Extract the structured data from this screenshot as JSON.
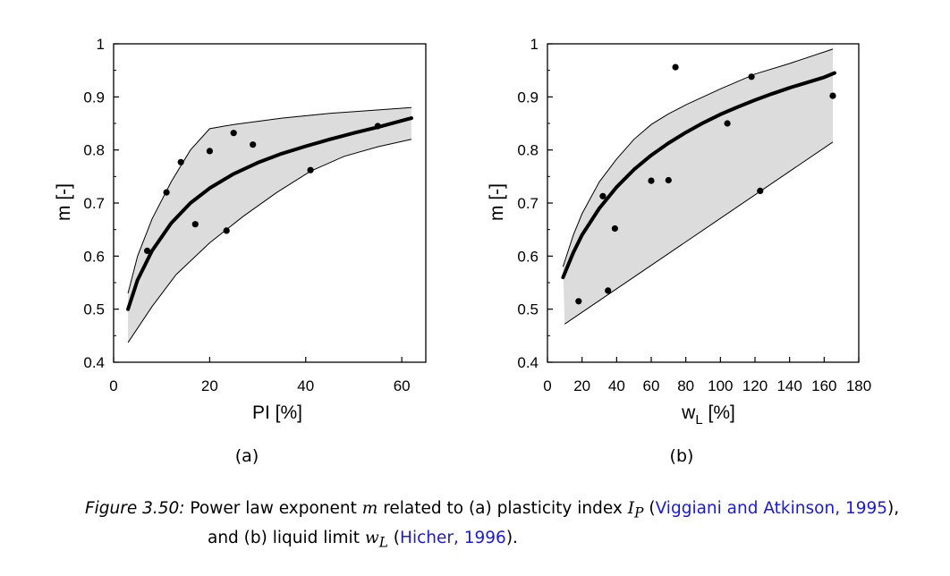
{
  "chart_data": [
    {
      "type": "scatter",
      "panel_label": "(a)",
      "xlabel": "PI [%]",
      "ylabel": "m [-]",
      "xlim": [
        0,
        65
      ],
      "ylim": [
        0.4,
        1.0
      ],
      "x_ticks": [
        0,
        20,
        40,
        60
      ],
      "y_ticks": [
        0.4,
        0.5,
        0.6,
        0.7,
        0.8,
        0.9,
        1.0
      ],
      "y_tick_labels": [
        "0.4",
        "0.5",
        "0.6",
        "0.7",
        "0.8",
        "0.9",
        "1"
      ],
      "grid": false,
      "points": [
        {
          "x": 7,
          "y": 0.61
        },
        {
          "x": 11,
          "y": 0.72
        },
        {
          "x": 14,
          "y": 0.777
        },
        {
          "x": 17,
          "y": 0.66
        },
        {
          "x": 20,
          "y": 0.798
        },
        {
          "x": 23.5,
          "y": 0.648
        },
        {
          "x": 25,
          "y": 0.832
        },
        {
          "x": 29,
          "y": 0.81
        },
        {
          "x": 41,
          "y": 0.762
        },
        {
          "x": 55,
          "y": 0.845
        }
      ],
      "fit_curve": [
        {
          "x": 3,
          "y": 0.5
        },
        {
          "x": 5,
          "y": 0.555
        },
        {
          "x": 8,
          "y": 0.61
        },
        {
          "x": 12,
          "y": 0.662
        },
        {
          "x": 16,
          "y": 0.7
        },
        {
          "x": 20,
          "y": 0.728
        },
        {
          "x": 25,
          "y": 0.755
        },
        {
          "x": 30,
          "y": 0.776
        },
        {
          "x": 35,
          "y": 0.793
        },
        {
          "x": 40,
          "y": 0.807
        },
        {
          "x": 45,
          "y": 0.82
        },
        {
          "x": 50,
          "y": 0.832
        },
        {
          "x": 55,
          "y": 0.843
        },
        {
          "x": 62,
          "y": 0.86
        }
      ],
      "band_upper": [
        {
          "x": 3,
          "y": 0.53
        },
        {
          "x": 5,
          "y": 0.6
        },
        {
          "x": 8,
          "y": 0.67
        },
        {
          "x": 12,
          "y": 0.74
        },
        {
          "x": 16,
          "y": 0.8
        },
        {
          "x": 20,
          "y": 0.84
        },
        {
          "x": 25,
          "y": 0.848
        },
        {
          "x": 35,
          "y": 0.86
        },
        {
          "x": 45,
          "y": 0.869
        },
        {
          "x": 62,
          "y": 0.88
        }
      ],
      "band_lower": [
        {
          "x": 3,
          "y": 0.437
        },
        {
          "x": 8,
          "y": 0.505
        },
        {
          "x": 13,
          "y": 0.565
        },
        {
          "x": 20,
          "y": 0.625
        },
        {
          "x": 27,
          "y": 0.675
        },
        {
          "x": 34,
          "y": 0.72
        },
        {
          "x": 41,
          "y": 0.76
        },
        {
          "x": 48,
          "y": 0.788
        },
        {
          "x": 55,
          "y": 0.806
        },
        {
          "x": 62,
          "y": 0.82
        }
      ]
    },
    {
      "type": "scatter",
      "panel_label": "(b)",
      "xlabel": "w",
      "xlabel_sub": "L",
      "xlabel_unit": "[%]",
      "ylabel": "m [-]",
      "xlim": [
        0,
        180
      ],
      "ylim": [
        0.4,
        1.0
      ],
      "x_ticks": [
        0,
        20,
        40,
        60,
        80,
        100,
        120,
        140,
        160,
        180
      ],
      "y_ticks": [
        0.4,
        0.5,
        0.6,
        0.7,
        0.8,
        0.9,
        1.0
      ],
      "y_tick_labels": [
        "0.4",
        "0.5",
        "0.6",
        "0.7",
        "0.8",
        "0.9",
        "1"
      ],
      "grid": false,
      "points": [
        {
          "x": 18,
          "y": 0.515
        },
        {
          "x": 32,
          "y": 0.713
        },
        {
          "x": 35,
          "y": 0.535
        },
        {
          "x": 39,
          "y": 0.652
        },
        {
          "x": 60,
          "y": 0.742
        },
        {
          "x": 70,
          "y": 0.743
        },
        {
          "x": 74,
          "y": 0.956
        },
        {
          "x": 104,
          "y": 0.85
        },
        {
          "x": 118,
          "y": 0.938
        },
        {
          "x": 123,
          "y": 0.723
        },
        {
          "x": 165,
          "y": 0.902
        }
      ],
      "fit_curve": [
        {
          "x": 9,
          "y": 0.56
        },
        {
          "x": 15,
          "y": 0.607
        },
        {
          "x": 20,
          "y": 0.64
        },
        {
          "x": 30,
          "y": 0.69
        },
        {
          "x": 40,
          "y": 0.73
        },
        {
          "x": 50,
          "y": 0.763
        },
        {
          "x": 60,
          "y": 0.79
        },
        {
          "x": 70,
          "y": 0.813
        },
        {
          "x": 80,
          "y": 0.833
        },
        {
          "x": 90,
          "y": 0.851
        },
        {
          "x": 100,
          "y": 0.867
        },
        {
          "x": 110,
          "y": 0.881
        },
        {
          "x": 120,
          "y": 0.894
        },
        {
          "x": 130,
          "y": 0.906
        },
        {
          "x": 140,
          "y": 0.917
        },
        {
          "x": 150,
          "y": 0.927
        },
        {
          "x": 160,
          "y": 0.937
        },
        {
          "x": 166,
          "y": 0.945
        }
      ],
      "band_upper": [
        {
          "x": 9,
          "y": 0.58
        },
        {
          "x": 15,
          "y": 0.64
        },
        {
          "x": 20,
          "y": 0.68
        },
        {
          "x": 30,
          "y": 0.74
        },
        {
          "x": 40,
          "y": 0.783
        },
        {
          "x": 50,
          "y": 0.82
        },
        {
          "x": 60,
          "y": 0.848
        },
        {
          "x": 70,
          "y": 0.868
        },
        {
          "x": 80,
          "y": 0.885
        },
        {
          "x": 100,
          "y": 0.915
        },
        {
          "x": 120,
          "y": 0.943
        },
        {
          "x": 140,
          "y": 0.963
        },
        {
          "x": 165,
          "y": 0.99
        }
      ],
      "band_lower": [
        {
          "x": 10,
          "y": 0.472
        },
        {
          "x": 165,
          "y": 0.815
        }
      ]
    }
  ],
  "caption": {
    "label": "Figure 3.50:",
    "text_1": " Power law exponent ",
    "m": "m",
    "text_2": " related to (a) plasticity index ",
    "ip_base": "I",
    "ip_sub": "P",
    "text_3": " (",
    "ref_1": "Viggiani and Atkinson, 1995",
    "text_4": "),",
    "text_5": "and (b) liquid limit ",
    "wl_base": "w",
    "wl_sub": "L",
    "text_6": " (",
    "ref_2": "Hicher, 1996",
    "text_7": ")."
  },
  "colors": {
    "band_fill": "#dcdcdc",
    "band_edge": "#000000",
    "fit_line": "#000000",
    "points": "#000000",
    "reference_link": "#1a1adc"
  }
}
